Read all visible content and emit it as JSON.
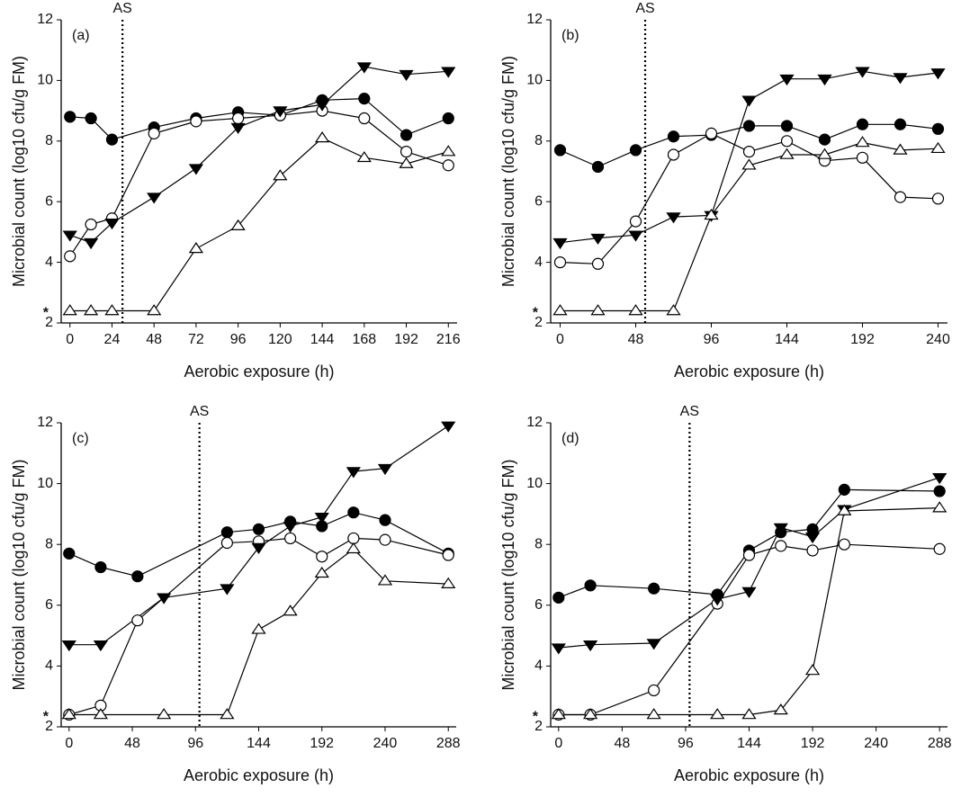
{
  "chart_data": [
    {
      "type": "line",
      "panel_label": "(a)",
      "xlabel": "Aerobic exposure (h)",
      "ylabel": "Microbial count (log10 cfu/g FM)",
      "xlim": [
        -5,
        221
      ],
      "ylim": [
        2,
        12
      ],
      "xticks": [
        0,
        24,
        48,
        72,
        96,
        120,
        144,
        168,
        192,
        216
      ],
      "yticks": [
        2,
        4,
        6,
        8,
        10,
        12
      ],
      "vline": {
        "x": 30,
        "label": "AS"
      },
      "annotations": [
        {
          "text": "*",
          "y": 2.4
        }
      ],
      "series": [
        {
          "marker": "circle",
          "filled": true,
          "color": "#000000",
          "x": [
            0,
            12,
            24,
            48,
            72,
            96,
            120,
            144,
            168,
            192,
            216
          ],
          "values": [
            8.8,
            8.75,
            8.05,
            8.45,
            8.75,
            8.95,
            8.85,
            9.35,
            9.4,
            8.2,
            8.75
          ]
        },
        {
          "marker": "circle",
          "filled": false,
          "color": "#000000",
          "x": [
            0,
            12,
            24,
            48,
            72,
            96,
            120,
            144,
            168,
            192,
            216
          ],
          "values": [
            4.2,
            5.25,
            5.45,
            8.25,
            8.65,
            8.75,
            8.85,
            9.0,
            8.75,
            7.65,
            7.2
          ]
        },
        {
          "marker": "triangle-down",
          "filled": true,
          "color": "#000000",
          "x": [
            0,
            12,
            24,
            48,
            72,
            96,
            120,
            144,
            168,
            192,
            216
          ],
          "values": [
            4.9,
            4.65,
            5.3,
            6.15,
            7.1,
            8.45,
            9.0,
            9.2,
            10.45,
            10.2,
            10.3
          ]
        },
        {
          "marker": "triangle-up",
          "filled": false,
          "color": "#000000",
          "x": [
            0,
            12,
            24,
            48,
            72,
            96,
            120,
            144,
            168,
            192,
            216
          ],
          "values": [
            2.4,
            2.4,
            2.4,
            2.4,
            4.45,
            5.2,
            6.85,
            8.1,
            7.45,
            7.25,
            7.65
          ]
        }
      ]
    },
    {
      "type": "line",
      "panel_label": "(b)",
      "xlabel": "Aerobic exposure (h)",
      "ylabel": "Microbial count (log10 cfu/g FM)",
      "xlim": [
        -6,
        246
      ],
      "ylim": [
        2,
        12
      ],
      "xticks": [
        0,
        48,
        96,
        144,
        192,
        240
      ],
      "yticks": [
        2,
        4,
        6,
        8,
        10,
        12
      ],
      "vline": {
        "x": 54,
        "label": "AS"
      },
      "annotations": [
        {
          "text": "*",
          "y": 2.4
        }
      ],
      "series": [
        {
          "marker": "circle",
          "filled": true,
          "color": "#000000",
          "x": [
            0,
            24,
            48,
            72,
            96,
            120,
            144,
            168,
            192,
            216,
            240
          ],
          "values": [
            7.7,
            7.15,
            7.7,
            8.15,
            8.2,
            8.5,
            8.5,
            8.05,
            8.55,
            8.55,
            8.4
          ]
        },
        {
          "marker": "circle",
          "filled": false,
          "color": "#000000",
          "x": [
            0,
            24,
            48,
            72,
            96,
            120,
            144,
            168,
            192,
            216,
            240
          ],
          "values": [
            4.0,
            3.95,
            5.35,
            7.55,
            8.25,
            7.65,
            8.0,
            7.35,
            7.45,
            6.15,
            6.1
          ]
        },
        {
          "marker": "triangle-down",
          "filled": true,
          "color": "#000000",
          "x": [
            0,
            24,
            48,
            72,
            96,
            120,
            144,
            168,
            192,
            216,
            240
          ],
          "values": [
            4.65,
            4.8,
            4.9,
            5.5,
            5.55,
            9.35,
            10.05,
            10.05,
            10.3,
            10.1,
            10.25
          ]
        },
        {
          "marker": "triangle-up",
          "filled": false,
          "color": "#000000",
          "x": [
            0,
            24,
            48,
            72,
            96,
            120,
            144,
            168,
            192,
            216,
            240
          ],
          "values": [
            2.4,
            2.4,
            2.4,
            2.4,
            5.55,
            7.2,
            7.55,
            7.55,
            7.95,
            7.7,
            7.75
          ]
        }
      ]
    },
    {
      "type": "line",
      "panel_label": "(c)",
      "xlabel": "Aerobic exposure (h)",
      "ylabel": "Microbial count (log10 cfu/g FM)",
      "xlim": [
        -6,
        294
      ],
      "ylim": [
        2,
        12
      ],
      "xticks": [
        0,
        48,
        96,
        144,
        192,
        240,
        288
      ],
      "yticks": [
        2,
        4,
        6,
        8,
        10,
        12
      ],
      "vline": {
        "x": 99,
        "label": "AS"
      },
      "annotations": [
        {
          "text": "*",
          "y": 2.4
        }
      ],
      "series": [
        {
          "marker": "circle",
          "filled": true,
          "color": "#000000",
          "x": [
            0,
            24,
            52,
            120,
            144,
            168,
            192,
            216,
            240,
            288
          ],
          "values": [
            7.7,
            7.25,
            6.95,
            8.4,
            8.5,
            8.75,
            8.6,
            9.05,
            8.8,
            7.7
          ]
        },
        {
          "marker": "circle",
          "filled": false,
          "color": "#000000",
          "x": [
            0,
            24,
            52,
            120,
            144,
            168,
            192,
            216,
            240,
            288
          ],
          "values": [
            2.4,
            2.7,
            5.5,
            8.05,
            8.1,
            8.2,
            7.6,
            8.2,
            8.15,
            7.65
          ]
        },
        {
          "marker": "triangle-down",
          "filled": true,
          "color": "#000000",
          "x": [
            0,
            24,
            72,
            120,
            144,
            168,
            192,
            216,
            240,
            288
          ],
          "values": [
            4.7,
            4.7,
            6.25,
            6.55,
            7.9,
            8.6,
            8.9,
            10.4,
            10.5,
            11.9
          ]
        },
        {
          "marker": "triangle-up",
          "filled": false,
          "color": "#000000",
          "x": [
            0,
            24,
            72,
            120,
            144,
            168,
            192,
            216,
            240,
            288
          ],
          "values": [
            2.4,
            2.4,
            2.4,
            2.4,
            5.2,
            5.8,
            7.05,
            7.85,
            6.8,
            6.7
          ]
        }
      ]
    },
    {
      "type": "line",
      "panel_label": "(d)",
      "xlabel": "Aerobic exposure (h)",
      "ylabel": "Microbial count (log10 cfu/g FM)",
      "xlim": [
        -6,
        294
      ],
      "ylim": [
        2,
        12
      ],
      "xticks": [
        0,
        48,
        96,
        144,
        192,
        240,
        288
      ],
      "yticks": [
        2,
        4,
        6,
        8,
        10,
        12
      ],
      "vline": {
        "x": 99,
        "label": "AS"
      },
      "annotations": [
        {
          "text": "*",
          "y": 2.4
        }
      ],
      "series": [
        {
          "marker": "circle",
          "filled": true,
          "color": "#000000",
          "x": [
            0,
            24,
            72,
            120,
            144,
            168,
            192,
            216,
            288
          ],
          "values": [
            6.25,
            6.65,
            6.55,
            6.35,
            7.8,
            8.4,
            8.5,
            9.8,
            9.75
          ]
        },
        {
          "marker": "circle",
          "filled": false,
          "color": "#000000",
          "x": [
            0,
            24,
            72,
            120,
            144,
            168,
            192,
            216,
            288
          ],
          "values": [
            2.4,
            2.4,
            3.2,
            6.05,
            7.65,
            7.95,
            7.8,
            8.0,
            7.85
          ]
        },
        {
          "marker": "triangle-down",
          "filled": true,
          "color": "#000000",
          "x": [
            0,
            24,
            72,
            120,
            144,
            168,
            192,
            216,
            288
          ],
          "values": [
            4.6,
            4.7,
            4.75,
            6.2,
            6.45,
            8.55,
            8.25,
            9.15,
            10.2
          ]
        },
        {
          "marker": "triangle-up",
          "filled": false,
          "color": "#000000",
          "x": [
            0,
            24,
            72,
            120,
            144,
            168,
            192,
            216,
            288
          ],
          "values": [
            2.4,
            2.4,
            2.4,
            2.4,
            2.4,
            2.55,
            3.85,
            9.1,
            9.2
          ]
        }
      ]
    }
  ]
}
